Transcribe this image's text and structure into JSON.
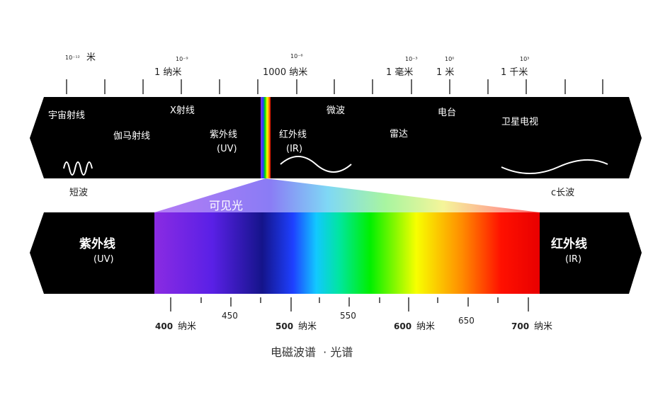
{
  "scale_top": {
    "exponents": [
      "10⁻¹²",
      "10⁻⁹",
      "10⁻⁶",
      "10⁻³",
      "10⁰",
      "10³"
    ],
    "units": [
      "米",
      "1  纳米",
      "1000  纳米",
      "1 毫米",
      "1 米",
      "1  千米"
    ]
  },
  "bands": {
    "cosmic": "宇宙射线",
    "gamma": "伽马射线",
    "xray": "X射线",
    "uv": "紫外线",
    "uv_abbr": "(UV)",
    "ir": "红外线",
    "ir_abbr": "(IR)",
    "microwave": "微波",
    "radar": "雷达",
    "tv_station": "电台",
    "satellite_tv": "卫星电视"
  },
  "short_wave": "短波",
  "long_wave": "c长波",
  "visible_light": "可见光",
  "spectrum": {
    "left_label": "紫外线",
    "left_abbr": "(UV)",
    "right_label": "红外线",
    "right_abbr": "(IR)",
    "major_labels": [
      "400",
      "500",
      "600",
      "700"
    ],
    "unit": "纳米",
    "minor_labels": [
      "450",
      "550",
      "650"
    ]
  },
  "caption": "电磁波谱  · 光谱"
}
